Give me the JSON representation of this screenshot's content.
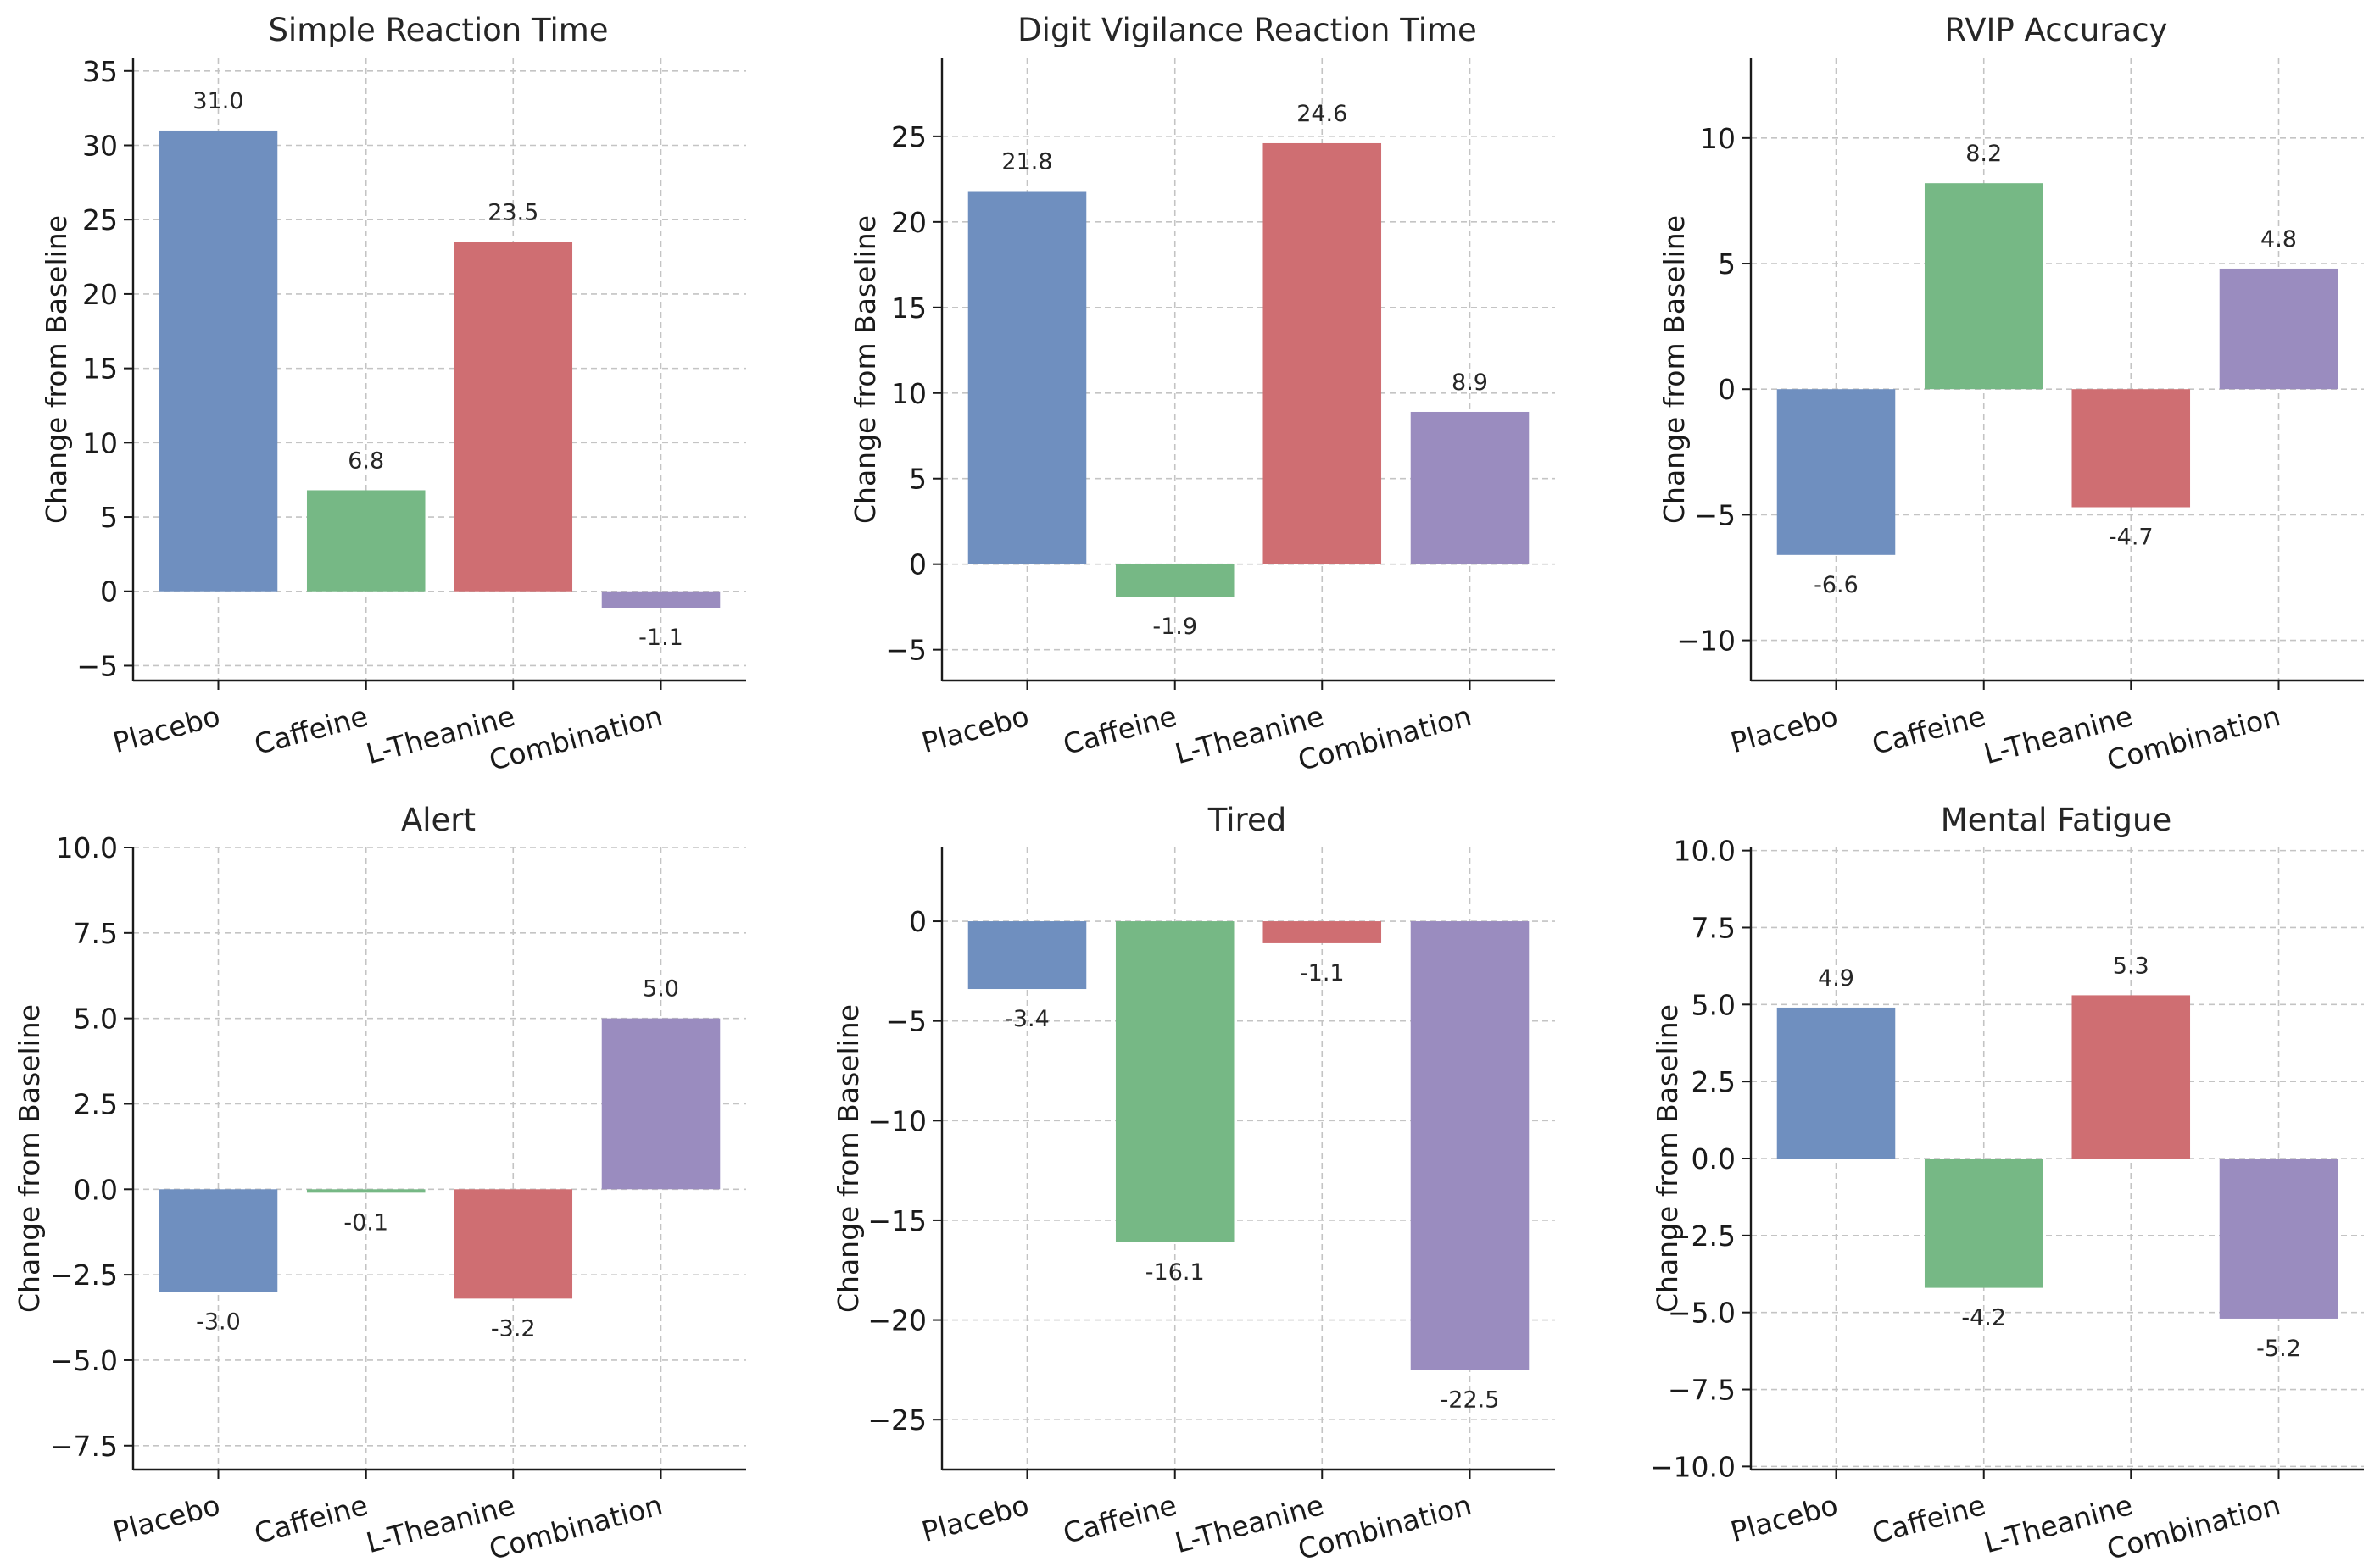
{
  "colors": {
    "series": [
      "#6f8fbf",
      "#76b885",
      "#cf6e72",
      "#9a8cbf"
    ],
    "grid": "#c4c4c4",
    "axis": "#1a1a1a",
    "text": "#262626"
  },
  "chart_data": [
    {
      "type": "bar",
      "title": "Simple Reaction Time",
      "ylabel": "Change from Baseline",
      "categories": [
        "Placebo",
        "Caffeine",
        "L-Theanine",
        "Combination"
      ],
      "values": [
        31.0,
        6.8,
        23.5,
        -1.1
      ],
      "value_labels": [
        "31.0",
        "6.8",
        "23.5",
        "-1.1"
      ],
      "ylim": [
        -6,
        35.9
      ],
      "yticks": [
        -5,
        0,
        5,
        10,
        15,
        20,
        25,
        30,
        35
      ],
      "ytick_labels": [
        "−5",
        "0",
        "5",
        "10",
        "15",
        "20",
        "25",
        "30",
        "35"
      ],
      "grid": true
    },
    {
      "type": "bar",
      "title": "Digit Vigilance Reaction Time",
      "ylabel": "Change from Baseline",
      "categories": [
        "Placebo",
        "Caffeine",
        "L-Theanine",
        "Combination"
      ],
      "values": [
        21.8,
        -1.9,
        24.6,
        8.9
      ],
      "value_labels": [
        "21.8",
        "-1.9",
        "24.6",
        "8.9"
      ],
      "ylim": [
        -6.8,
        29.6
      ],
      "yticks": [
        -5,
        0,
        5,
        10,
        15,
        20,
        25
      ],
      "ytick_labels": [
        "−5",
        "0",
        "5",
        "10",
        "15",
        "20",
        "25"
      ],
      "grid": true
    },
    {
      "type": "bar",
      "title": "RVIP Accuracy",
      "ylabel": "Change from Baseline",
      "categories": [
        "Placebo",
        "Caffeine",
        "L-Theanine",
        "Combination"
      ],
      "values": [
        -6.6,
        8.2,
        -4.7,
        4.8
      ],
      "value_labels": [
        "-6.6",
        "8.2",
        "-4.7",
        "4.8"
      ],
      "ylim": [
        -11.6,
        13.2
      ],
      "yticks": [
        -10,
        -5,
        0,
        5,
        10
      ],
      "ytick_labels": [
        "−10",
        "−5",
        "0",
        "5",
        "10"
      ],
      "grid": true
    },
    {
      "type": "bar",
      "title": "Alert",
      "ylabel": "Change from Baseline",
      "categories": [
        "Placebo",
        "Caffeine",
        "L-Theanine",
        "Combination"
      ],
      "values": [
        -3.0,
        -0.1,
        -3.2,
        5.0
      ],
      "value_labels": [
        "-3.0",
        "-0.1",
        "-3.2",
        "5.0"
      ],
      "ylim": [
        -8.2,
        10
      ],
      "yticks": [
        -7.5,
        -5.0,
        -2.5,
        0.0,
        2.5,
        5.0,
        7.5,
        10.0
      ],
      "ytick_labels": [
        "−7.5",
        "−5.0",
        "−2.5",
        "0.0",
        "2.5",
        "5.0",
        "7.5",
        "10.0"
      ],
      "grid": true
    },
    {
      "type": "bar",
      "title": "Tired",
      "ylabel": "Change from Baseline",
      "categories": [
        "Placebo",
        "Caffeine",
        "L-Theanine",
        "Combination"
      ],
      "values": [
        -3.4,
        -16.1,
        -1.1,
        -22.5
      ],
      "value_labels": [
        "-3.4",
        "-16.1",
        "-1.1",
        "-22.5"
      ],
      "ylim": [
        -27.5,
        3.7
      ],
      "yticks": [
        -25,
        -20,
        -15,
        -10,
        -5,
        0
      ],
      "ytick_labels": [
        "−25",
        "−20",
        "−15",
        "−10",
        "−5",
        "0"
      ],
      "grid": true
    },
    {
      "type": "bar",
      "title": "Mental Fatigue",
      "ylabel": "Change from Baseline",
      "categories": [
        "Placebo",
        "Caffeine",
        "L-Theanine",
        "Combination"
      ],
      "values": [
        4.9,
        -4.2,
        5.3,
        -5.2
      ],
      "value_labels": [
        "4.9",
        "-4.2",
        "5.3",
        "-5.2"
      ],
      "ylim": [
        -10.1,
        10.1
      ],
      "yticks": [
        -10.0,
        -7.5,
        -5.0,
        -2.5,
        0.0,
        2.5,
        5.0,
        7.5,
        10.0
      ],
      "ytick_labels": [
        "−10.0",
        "−7.5",
        "−5.0",
        "−2.5",
        "0.0",
        "2.5",
        "5.0",
        "7.5",
        "10.0"
      ],
      "grid": true
    }
  ]
}
